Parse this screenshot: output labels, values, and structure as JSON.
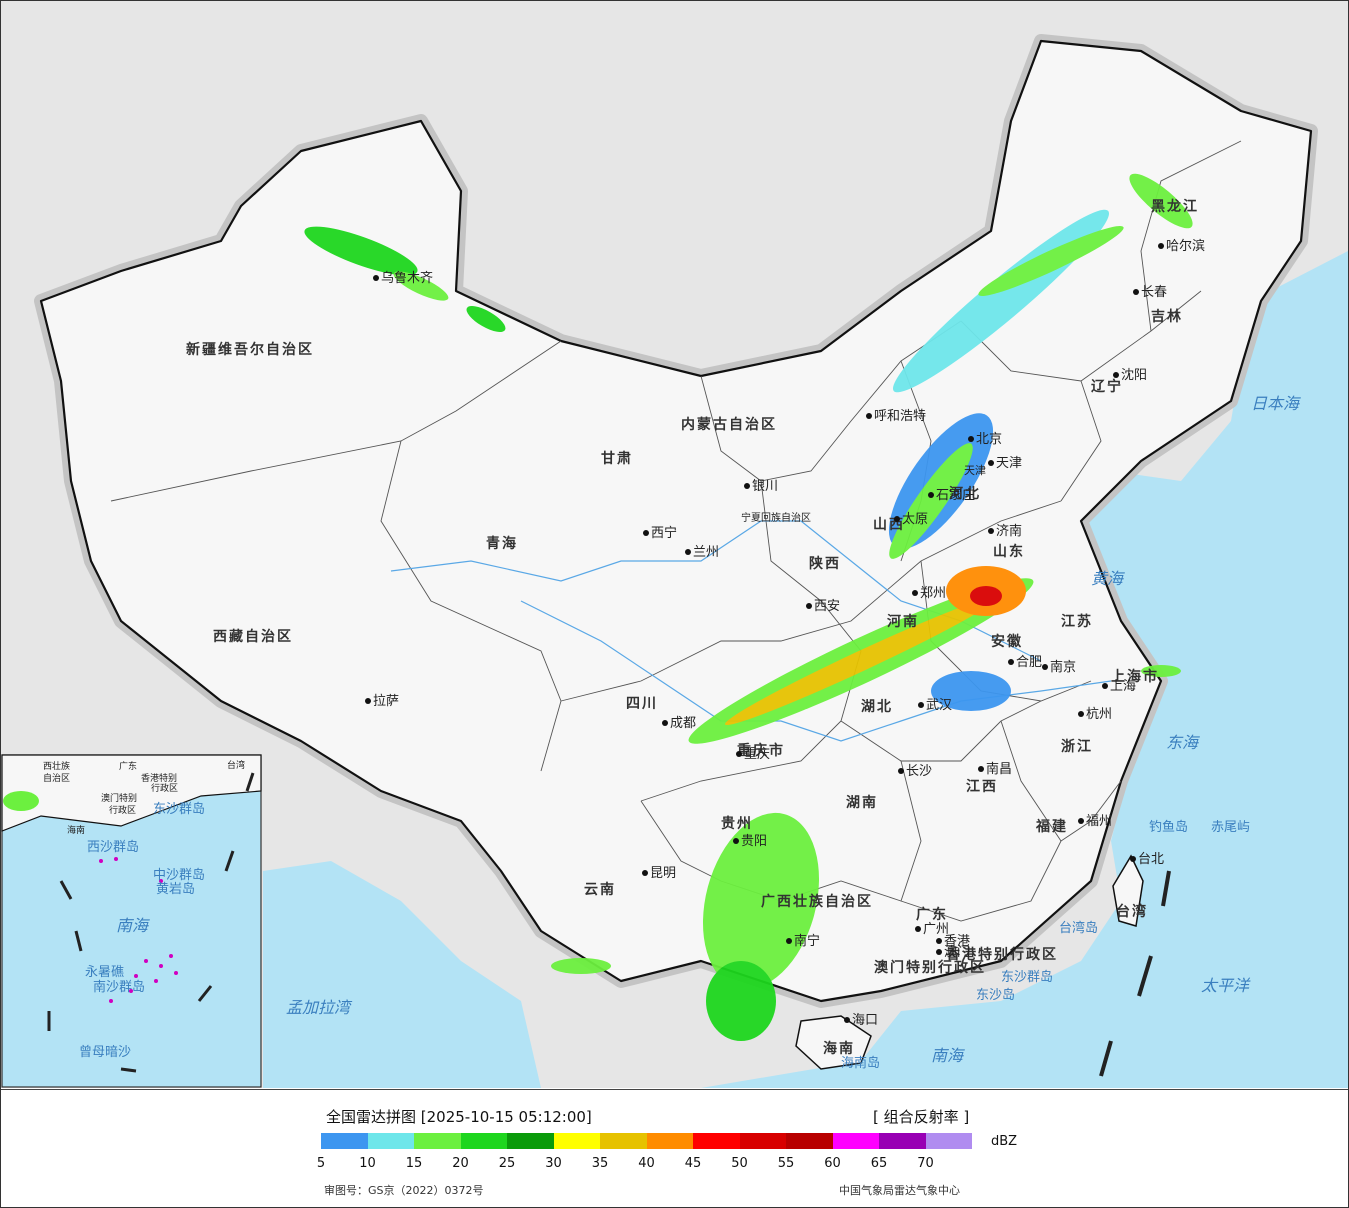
{
  "map": {
    "provinces": [
      "新疆维吾尔自治区",
      "西藏自治区",
      "青海",
      "甘肃",
      "内蒙古自治区",
      "黑龙江",
      "吉林",
      "辽宁",
      "河北",
      "山西",
      "陕西",
      "宁夏回族自治区",
      "四川",
      "重庆市",
      "贵州",
      "云南",
      "广西壮族自治区",
      "湖南",
      "湖北",
      "河南",
      "山东",
      "江苏",
      "安徽",
      "浙江",
      "江西",
      "福建",
      "广东",
      "海南",
      "上海市",
      "天津",
      "香港特别行政区",
      "澳门特别行政区",
      "台湾"
    ],
    "cities": [
      "乌鲁木齐",
      "呼和浩特",
      "北京",
      "天津",
      "石家庄",
      "太原",
      "济南",
      "银川",
      "西宁",
      "兰州",
      "西安",
      "郑州",
      "合肥",
      "南京",
      "上海",
      "杭州",
      "武汉",
      "成都",
      "重庆",
      "长沙",
      "南昌",
      "福州",
      "台北",
      "拉萨",
      "昆明",
      "贵阳",
      "南宁",
      "广州",
      "澳门",
      "香港",
      "海口",
      "哈尔滨",
      "长春",
      "沈阳"
    ],
    "seas": [
      "日本海",
      "黄海",
      "东海",
      "太平洋",
      "南海",
      "孟加拉湾"
    ],
    "islands": [
      "钓鱼岛",
      "赤尾屿",
      "台湾岛",
      "东沙群岛",
      "东沙岛",
      "海南岛"
    ],
    "inset_labels": [
      "西壮族",
      "自治区",
      "广东",
      "香港特别",
      "行政区",
      "澳门特别",
      "行政区",
      "东沙群岛",
      "台湾",
      "海南",
      "西沙群岛",
      "中沙群岛",
      "黄岩岛",
      "南海",
      "南沙群岛",
      "永暑礁",
      "曾母暗沙"
    ]
  },
  "legend": {
    "title": "全国雷达拼图 [2025-10-15 05:12:00]",
    "product": "[ 组合反射率 ]",
    "unit": "dBZ",
    "ticks": [
      "5",
      "10",
      "15",
      "20",
      "25",
      "30",
      "35",
      "40",
      "45",
      "50",
      "55",
      "60",
      "65",
      "70"
    ],
    "colors": [
      "#3d96f0",
      "#6ee6ea",
      "#6cf03f",
      "#1ed61e",
      "#0a9b0a",
      "#ffff00",
      "#e6c200",
      "#ff8c00",
      "#ff0000",
      "#d80000",
      "#b80000",
      "#ff00ff",
      "#9800b4",
      "#b08cf0"
    ],
    "approval": "审图号：GS京（2022）0372号",
    "source": "中国气象局雷达气象中心"
  }
}
